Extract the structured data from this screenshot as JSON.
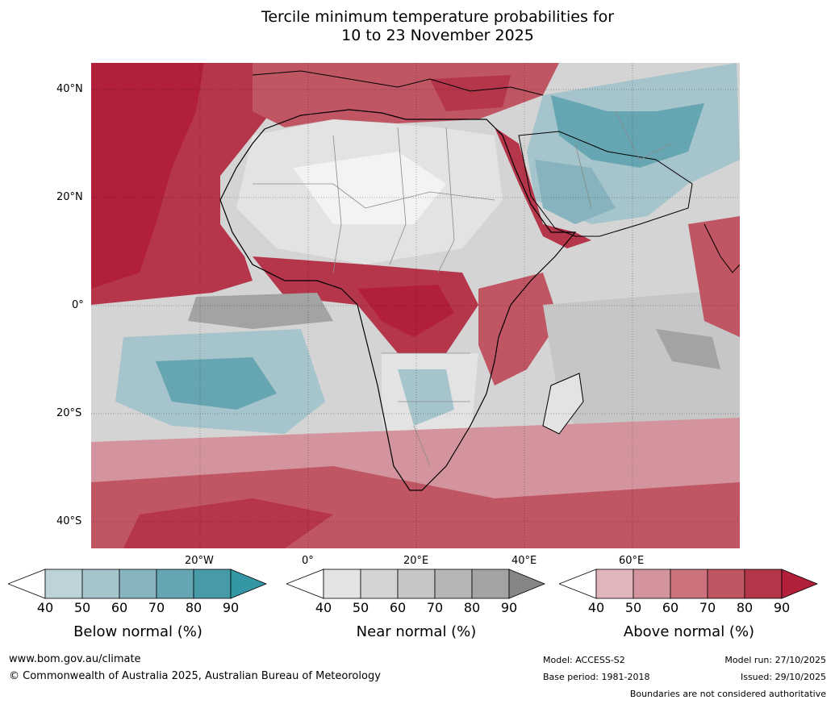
{
  "title": {
    "line1": "Tercile minimum temperature probabilities for",
    "line2": "10 to 23 November 2025"
  },
  "map": {
    "lat_labels": [
      "40°N",
      "20°N",
      "0°",
      "20°S",
      "40°S"
    ],
    "lon_labels": [
      "20°W",
      "0°",
      "20°E",
      "40°E",
      "60°E"
    ]
  },
  "colorbars": [
    {
      "label": "Below normal (%)",
      "ticks": [
        "40",
        "50",
        "60",
        "70",
        "80",
        "90"
      ],
      "colors": [
        "#bdd3d9",
        "#a5c4cb",
        "#86b3bd",
        "#66a6b2",
        "#479aa8"
      ],
      "over_color": "#3596a6"
    },
    {
      "label": "Near normal (%)",
      "ticks": [
        "40",
        "50",
        "60",
        "70",
        "80",
        "90"
      ],
      "colors": [
        "#e3e3e3",
        "#d4d4d4",
        "#c6c6c6",
        "#b5b6b6",
        "#a3a3a3"
      ],
      "over_color": "#868686"
    },
    {
      "label": "Above normal (%)",
      "ticks": [
        "40",
        "50",
        "60",
        "70",
        "80",
        "90"
      ],
      "colors": [
        "#e2b4bb",
        "#d4949d",
        "#cc727d",
        "#c05563",
        "#b5354b"
      ],
      "over_color": "#b21f3a"
    }
  ],
  "footer": {
    "website": "www.bom.gov.au/climate",
    "copyright": "© Commonwealth of Australia 2025, Australian Bureau of Meteorology",
    "model": "Model: ACCESS-S2",
    "base_period": "Base period: 1981-2018",
    "model_run": "Model run: 27/10/2025",
    "issued": "Issued: 29/10/2025",
    "disclaimer": "Boundaries are not considered authoritative"
  }
}
